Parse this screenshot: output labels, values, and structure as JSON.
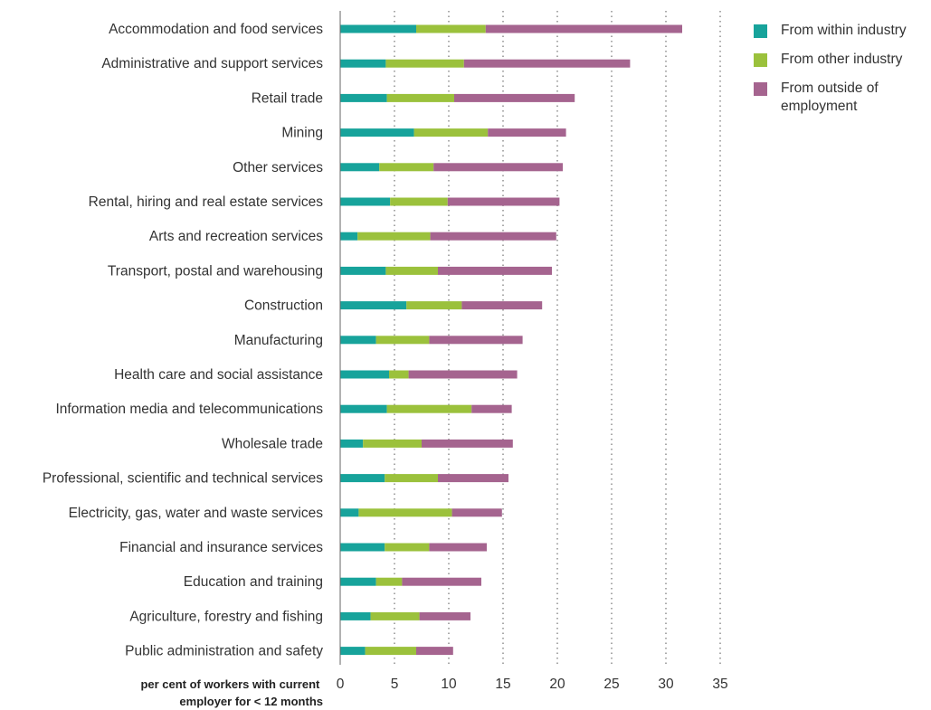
{
  "chart_data": {
    "type": "bar",
    "orientation": "horizontal",
    "stacked": true,
    "xlabel": [
      "per cent of workers with current",
      "employer for < 12 months"
    ],
    "xlim": [
      0,
      35
    ],
    "xticks": [
      0,
      5,
      10,
      15,
      20,
      25,
      30,
      35
    ],
    "grid": "vertical dotted",
    "legend_position": "top-right",
    "categories": [
      "Accommodation and food services",
      "Administrative and support services",
      "Retail trade",
      "Mining",
      "Other services",
      "Rental, hiring and real estate services",
      "Arts and recreation services",
      "Transport, postal and warehousing",
      "Construction",
      "Manufacturing",
      "Health care and social assistance",
      "Information media and telecommunications",
      "Wholesale trade",
      "Professional, scientific and technical services",
      "Electricity, gas, water and waste services",
      "Financial and insurance services",
      "Education and training",
      "Agriculture, forestry and fishing",
      "Public administration and safety"
    ],
    "series": [
      {
        "name": "From within industry",
        "color": "#17a39b",
        "values": [
          7.0,
          4.2,
          4.3,
          6.8,
          3.6,
          4.6,
          1.6,
          4.2,
          6.1,
          3.3,
          4.5,
          4.3,
          2.1,
          4.1,
          1.7,
          4.1,
          3.3,
          2.8,
          2.3
        ]
      },
      {
        "name": "From other industry",
        "color": "#9bc13c",
        "values": [
          6.4,
          7.2,
          6.2,
          6.8,
          5.0,
          5.3,
          6.7,
          4.8,
          5.1,
          4.9,
          1.8,
          7.8,
          5.4,
          4.9,
          8.6,
          4.1,
          2.4,
          4.5,
          4.7
        ]
      },
      {
        "name": "From outside of employment",
        "color": "#a5648f",
        "values": [
          18.1,
          15.3,
          11.1,
          7.2,
          11.9,
          10.3,
          11.6,
          10.5,
          7.4,
          8.6,
          10.0,
          3.7,
          8.4,
          6.5,
          4.6,
          5.3,
          7.3,
          4.7,
          3.4
        ]
      }
    ]
  }
}
